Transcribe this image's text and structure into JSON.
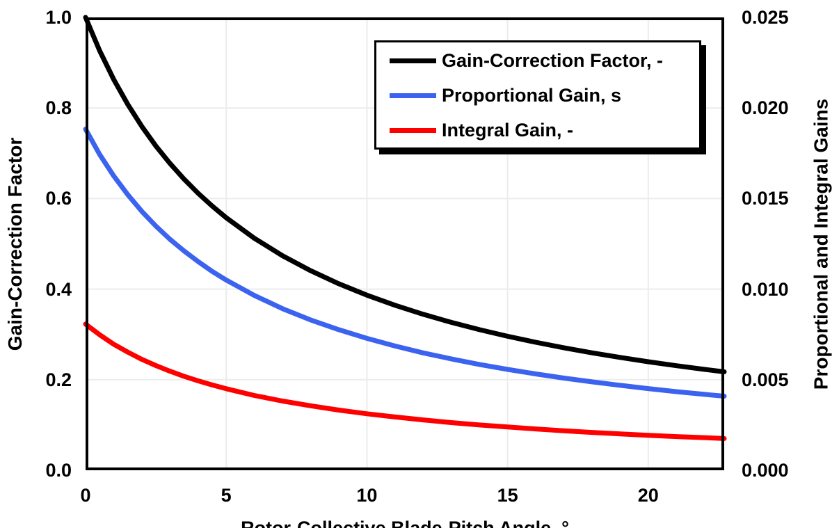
{
  "figure": {
    "left_axis": {
      "title": "Gain-Correction Factor",
      "ticks": [
        "1.0",
        "0.8",
        "0.6",
        "0.4",
        "0.2",
        "0.0"
      ]
    },
    "right_axis": {
      "title": "Proportional and Integral Gains",
      "ticks": [
        "0.025",
        "0.020",
        "0.015",
        "0.010",
        "0.005",
        "0.000"
      ]
    },
    "x_axis": {
      "title": "Rotor-Collective Blade-Pitch Angle, °",
      "ticks": [
        "0",
        "5",
        "10",
        "15",
        "20"
      ],
      "tick_values": [
        0,
        5,
        10,
        15,
        20
      ]
    },
    "legend": {
      "items": [
        {
          "label": "Gain-Correction Factor, -",
          "color": "#000000"
        },
        {
          "label": "Proportional Gain, s",
          "color": "#3B63EF"
        },
        {
          "label": "Integral Gain, -",
          "color": "#FE0000"
        }
      ]
    }
  },
  "colors": {
    "background": "#ffffff",
    "frame": "#000000",
    "gridline": "#ececec",
    "series_black": "#000000",
    "series_blue": "#3B63EF",
    "series_red": "#FE0000"
  },
  "chart_data": {
    "type": "line",
    "title": "",
    "xlabel": "Rotor-Collective Blade-Pitch Angle, °",
    "ylabel_left": "Gain-Correction Factor",
    "ylabel_right": "Proportional and Integral Gains",
    "xlim": [
      0,
      22.7
    ],
    "ylim_left": [
      0,
      1.0
    ],
    "ylim_right": [
      0,
      0.025
    ],
    "grid": true,
    "legend_position": "top-center-inside",
    "x": [
      0,
      0.5,
      1,
      1.5,
      2,
      2.5,
      3,
      3.5,
      4,
      4.5,
      5,
      6,
      7,
      8,
      9,
      10,
      11,
      12,
      13,
      14,
      15,
      16,
      17,
      18,
      19,
      20,
      21,
      22,
      22.7
    ],
    "series": [
      {
        "name": "Gain-Correction Factor, -",
        "axis": "left",
        "color": "#000000",
        "values": [
          1.0,
          0.9265,
          0.8631,
          0.8078,
          0.7591,
          0.716,
          0.6775,
          0.643,
          0.6117,
          0.5834,
          0.5576,
          0.5123,
          0.4738,
          0.4407,
          0.4119,
          0.3866,
          0.3643,
          0.3444,
          0.3265,
          0.3104,
          0.2959,
          0.2826,
          0.2705,
          0.2593,
          0.2491,
          0.2396,
          0.2308,
          0.2227,
          0.2173
        ]
      },
      {
        "name": "Proportional Gain, s",
        "axis": "right",
        "color": "#3B63EF",
        "values": [
          0.01883,
          0.01744,
          0.01625,
          0.01521,
          0.01429,
          0.01348,
          0.01275,
          0.01211,
          0.01152,
          0.01098,
          0.0105,
          0.00965,
          0.00892,
          0.0083,
          0.00776,
          0.00728,
          0.00686,
          0.00648,
          0.00615,
          0.00584,
          0.00557,
          0.00532,
          0.00509,
          0.00488,
          0.00469,
          0.00451,
          0.00434,
          0.00419,
          0.00409
        ]
      },
      {
        "name": "Integral Gain, -",
        "axis": "right",
        "color": "#FE0000",
        "values": [
          0.00807,
          0.00748,
          0.00696,
          0.00652,
          0.00612,
          0.00578,
          0.00547,
          0.00519,
          0.00494,
          0.00471,
          0.0045,
          0.00413,
          0.00382,
          0.00356,
          0.00332,
          0.00312,
          0.00294,
          0.00278,
          0.00263,
          0.0025,
          0.00239,
          0.00228,
          0.00218,
          0.00209,
          0.00201,
          0.00193,
          0.00186,
          0.0018,
          0.00175
        ]
      }
    ]
  }
}
